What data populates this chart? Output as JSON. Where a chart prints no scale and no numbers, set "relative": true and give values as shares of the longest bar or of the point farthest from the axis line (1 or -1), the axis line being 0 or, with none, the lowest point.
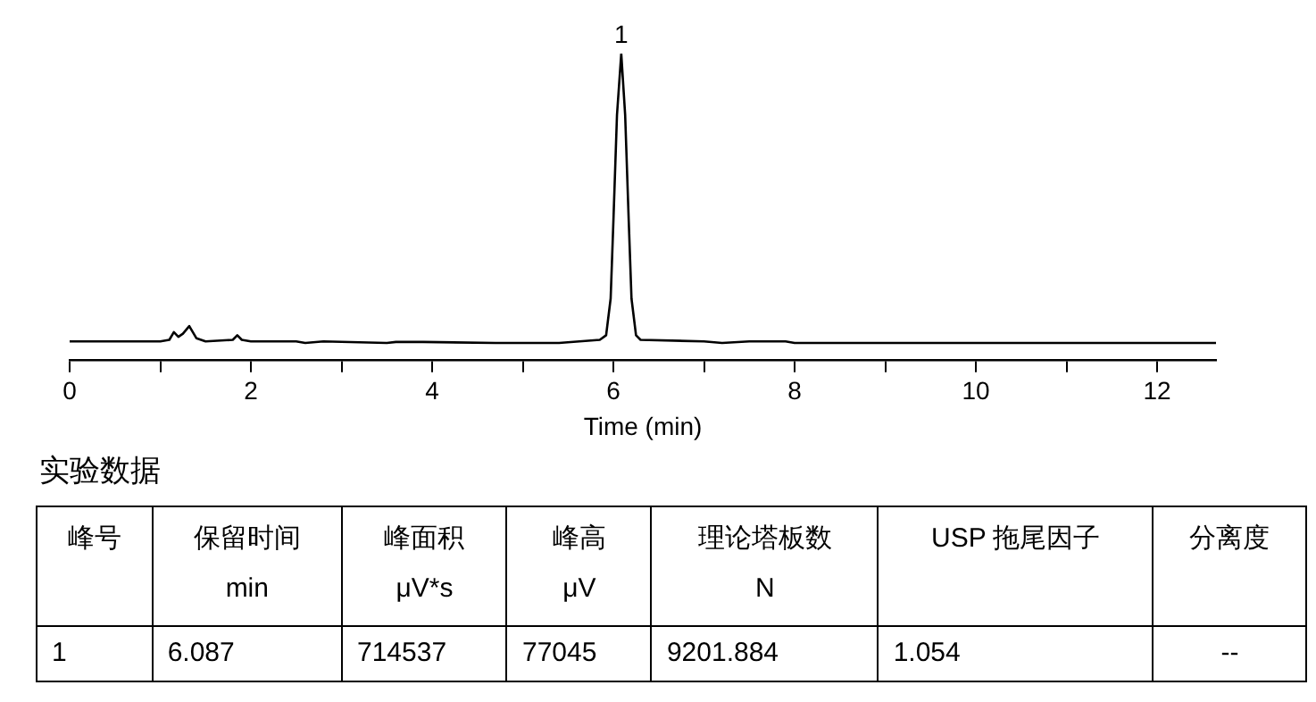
{
  "chart_data": [
    {
      "type": "line",
      "xlabel": "Time (min)",
      "relative": true,
      "xlim": [
        0,
        12.65
      ],
      "xticks": [
        0,
        {
          "value": 1,
          "label": null
        },
        2,
        {
          "value": 3,
          "label": null
        },
        4,
        {
          "value": 5,
          "label": null
        },
        6,
        {
          "value": 7,
          "label": null
        },
        8,
        {
          "value": 9,
          "label": null
        },
        10,
        {
          "value": 11,
          "label": null
        },
        12
      ],
      "grid": false,
      "legend": false,
      "marker": "none",
      "line_style": "solid",
      "annotations": [
        {
          "text": "1",
          "x": 6.087,
          "y": 1
        }
      ],
      "series": [
        {
          "color": "#000000",
          "x": [
            0,
            0.1,
            1.0,
            1.1,
            1.15,
            1.2,
            1.25,
            1.32,
            1.4,
            1.5,
            1.8,
            1.85,
            1.9,
            2.0,
            2.5,
            2.6,
            2.8,
            3.5,
            3.6,
            3.9,
            4.7,
            5.4,
            5.85,
            5.92,
            5.97,
            6.0,
            6.04,
            6.087,
            6.13,
            6.17,
            6.2,
            6.25,
            6.3,
            7.0,
            7.2,
            7.5,
            7.9,
            8.0,
            10,
            12.65
          ],
          "values": [
            0.06,
            0.06,
            0.06,
            0.065,
            0.09,
            0.075,
            0.085,
            0.11,
            0.07,
            0.06,
            0.065,
            0.08,
            0.065,
            0.06,
            0.06,
            0.055,
            0.06,
            0.055,
            0.058,
            0.058,
            0.055,
            0.055,
            0.065,
            0.08,
            0.2,
            0.45,
            0.8,
            1,
            0.8,
            0.45,
            0.2,
            0.08,
            0.065,
            0.06,
            0.055,
            0.06,
            0.06,
            0.055,
            0.055,
            0.055
          ]
        }
      ]
    },
    {
      "type": "other",
      "title": "实验数据",
      "categories": [
        "峰号",
        "保留时间\nmin",
        "峰面积\nμV*s",
        "峰高\nμV",
        "理论塔板数\nN",
        "USP 拖尾因子",
        "分离度"
      ],
      "annotations": [
        "1",
        "6.087",
        "714537",
        "77045",
        "9201.884",
        "1.054",
        "--"
      ]
    }
  ]
}
